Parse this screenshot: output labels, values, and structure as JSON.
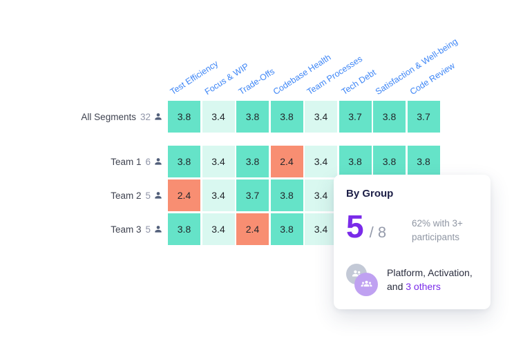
{
  "heatmap": {
    "columns": [
      "Test Efficiency",
      "Focus & WIP",
      "Trade-Offs",
      "Codebase Health",
      "Team Processes",
      "Tech Debt",
      "Satisfaction & Well-being",
      "Code Review"
    ],
    "rows": [
      {
        "label": "All Segments",
        "count": "32",
        "values": [
          "3.8",
          "3.4",
          "3.8",
          "3.8",
          "3.4",
          "3.7",
          "3.8",
          "3.7"
        ],
        "levels": [
          "high",
          "mid",
          "high",
          "high",
          "mid",
          "high",
          "high",
          "high"
        ]
      },
      {
        "label": "Team 1",
        "count": "6",
        "values": [
          "3.8",
          "3.4",
          "3.8",
          "2.4",
          "3.4",
          "3.8",
          "3.8",
          "3.8"
        ],
        "levels": [
          "high",
          "mid",
          "high",
          "low",
          "mid",
          "high",
          "high",
          "high"
        ]
      },
      {
        "label": "Team 2",
        "count": "5",
        "values": [
          "2.4",
          "3.4",
          "3.7",
          "3.8",
          "3.4",
          "",
          "",
          ""
        ],
        "levels": [
          "low",
          "mid",
          "high",
          "high",
          "mid",
          "hidden",
          "hidden",
          "hidden"
        ]
      },
      {
        "label": "Team 3",
        "count": "5",
        "values": [
          "3.8",
          "3.4",
          "2.4",
          "3.8",
          "3.4",
          "",
          "",
          ""
        ],
        "levels": [
          "high",
          "mid",
          "low",
          "high",
          "mid",
          "hidden",
          "hidden",
          "hidden"
        ]
      }
    ],
    "colors": {
      "high": "#65E3C8",
      "mid": "#D9F8F0",
      "low": "#F88E72"
    },
    "header_color": "#3E86F6"
  },
  "card": {
    "title": "By Group",
    "stat_value": "5",
    "stat_total_label": "/ 8",
    "stat_note": "62% with 3+ participants",
    "groups_text_prefix": "Platform, Activation, and ",
    "groups_text_link": "3 others",
    "accent_color": "#7A2BE9"
  }
}
